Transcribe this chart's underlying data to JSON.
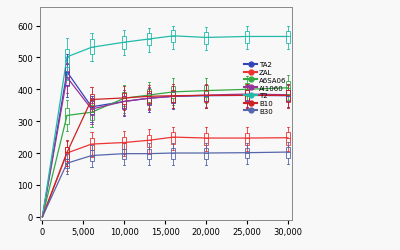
{
  "x_values": [
    0,
    3000,
    6000,
    10000,
    13000,
    16000,
    20000,
    25000,
    30000
  ],
  "series_order": [
    "TA2",
    "ZAL",
    "A6SA06",
    "Al1060",
    "T2",
    "B10",
    "B30"
  ],
  "series": {
    "TA2": {
      "color": "#3344bb",
      "medians": [
        0,
        455,
        345,
        362,
        372,
        378,
        380,
        381,
        380
      ],
      "q1": [
        0,
        415,
        322,
        338,
        350,
        358,
        362,
        364,
        363
      ],
      "q3": [
        0,
        478,
        362,
        378,
        388,
        395,
        397,
        398,
        397
      ],
      "whislo": [
        0,
        375,
        298,
        315,
        328,
        338,
        342,
        344,
        343
      ],
      "whishi": [
        0,
        512,
        378,
        393,
        404,
        412,
        414,
        415,
        414
      ]
    },
    "ZAL": {
      "color": "#ee3333",
      "medians": [
        0,
        200,
        228,
        233,
        240,
        250,
        247,
        247,
        248
      ],
      "q1": [
        0,
        175,
        208,
        212,
        220,
        228,
        226,
        226,
        226
      ],
      "q3": [
        0,
        218,
        246,
        250,
        258,
        266,
        264,
        264,
        265
      ],
      "whislo": [
        0,
        143,
        188,
        190,
        200,
        208,
        206,
        206,
        207
      ],
      "whishi": [
        0,
        238,
        266,
        270,
        276,
        283,
        281,
        281,
        282
      ]
    },
    "A6SA06": {
      "color": "#33aa44",
      "medians": [
        0,
        318,
        328,
        372,
        382,
        392,
        396,
        400,
        405
      ],
      "q1": [
        0,
        292,
        305,
        348,
        360,
        372,
        376,
        380,
        385
      ],
      "q3": [
        0,
        342,
        350,
        392,
        402,
        412,
        415,
        420,
        425
      ],
      "whislo": [
        0,
        268,
        282,
        326,
        340,
        352,
        356,
        360,
        365
      ],
      "whishi": [
        0,
        368,
        372,
        414,
        424,
        434,
        437,
        441,
        446
      ]
    },
    "Al1060": {
      "color": "#993399",
      "medians": [
        0,
        438,
        338,
        362,
        372,
        378,
        382,
        385,
        383
      ],
      "q1": [
        0,
        412,
        318,
        342,
        354,
        360,
        363,
        366,
        364
      ],
      "q3": [
        0,
        458,
        356,
        380,
        390,
        393,
        398,
        400,
        398
      ],
      "whislo": [
        0,
        388,
        292,
        320,
        336,
        340,
        344,
        346,
        344
      ],
      "whishi": [
        0,
        482,
        372,
        397,
        408,
        410,
        415,
        418,
        416
      ]
    },
    "T2": {
      "color": "#22bbaa",
      "medians": [
        0,
        502,
        532,
        548,
        558,
        568,
        563,
        566,
        566
      ],
      "q1": [
        0,
        470,
        510,
        528,
        538,
        548,
        543,
        546,
        546
      ],
      "q3": [
        0,
        528,
        558,
        566,
        576,
        585,
        581,
        583,
        583
      ],
      "whislo": [
        0,
        428,
        488,
        508,
        518,
        528,
        523,
        526,
        526
      ],
      "whishi": [
        0,
        560,
        578,
        586,
        593,
        600,
        596,
        598,
        598
      ]
    },
    "B10": {
      "color": "#cc2222",
      "medians": [
        0,
        202,
        368,
        373,
        378,
        380,
        381,
        381,
        381
      ],
      "q1": [
        0,
        182,
        348,
        354,
        358,
        360,
        361,
        361,
        361
      ],
      "q3": [
        0,
        220,
        386,
        390,
        395,
        398,
        398,
        398,
        398
      ],
      "whislo": [
        0,
        158,
        328,
        334,
        338,
        340,
        341,
        341,
        341
      ],
      "whishi": [
        0,
        240,
        406,
        410,
        413,
        416,
        416,
        416,
        416
      ]
    },
    "B30": {
      "color": "#5566aa",
      "medians": [
        0,
        168,
        192,
        198,
        198,
        200,
        200,
        201,
        203
      ],
      "q1": [
        0,
        152,
        175,
        180,
        180,
        182,
        182,
        183,
        185
      ],
      "q3": [
        0,
        182,
        208,
        213,
        213,
        216,
        216,
        216,
        218
      ],
      "whislo": [
        0,
        135,
        157,
        161,
        162,
        163,
        163,
        164,
        167
      ],
      "whishi": [
        0,
        197,
        226,
        230,
        230,
        232,
        232,
        232,
        234
      ]
    }
  },
  "xlim": [
    -300,
    30500
  ],
  "ylim": [
    -10,
    660
  ],
  "xticks": [
    0,
    5000,
    10000,
    15000,
    20000,
    25000,
    30000
  ],
  "yticks": [
    0,
    100,
    200,
    300,
    400,
    500,
    600
  ],
  "figsize": [
    4.0,
    2.51
  ],
  "dpi": 100,
  "bg_color": "#f8f8f8"
}
